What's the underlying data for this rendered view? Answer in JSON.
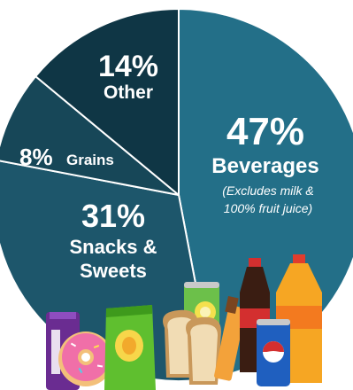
{
  "chart_data": {
    "type": "pie",
    "slices": [
      {
        "pct_label": "47%",
        "name": "Beverages",
        "note_line1": "(Excludes milk &",
        "note_line2": "100% fruit juice)",
        "value": 47,
        "color": "#236f88"
      },
      {
        "pct_label": "31%",
        "name_line1": "Snacks &",
        "name_line2": "Sweets",
        "value": 31,
        "color": "#1d566b"
      },
      {
        "pct_label": "8%",
        "name": "Grains",
        "value": 8,
        "color": "#174758"
      },
      {
        "pct_label": "14%",
        "name": "Other",
        "value": 14,
        "color": "#0f3645"
      }
    ]
  },
  "icons": [
    "candy-bar-icon",
    "donut-icon",
    "chips-bag-icon",
    "soda-can-icon",
    "bread-icon",
    "chocolate-bar-icon",
    "cola-bottle-icon",
    "orange-soda-bottle-icon",
    "pepsi-can-icon"
  ]
}
